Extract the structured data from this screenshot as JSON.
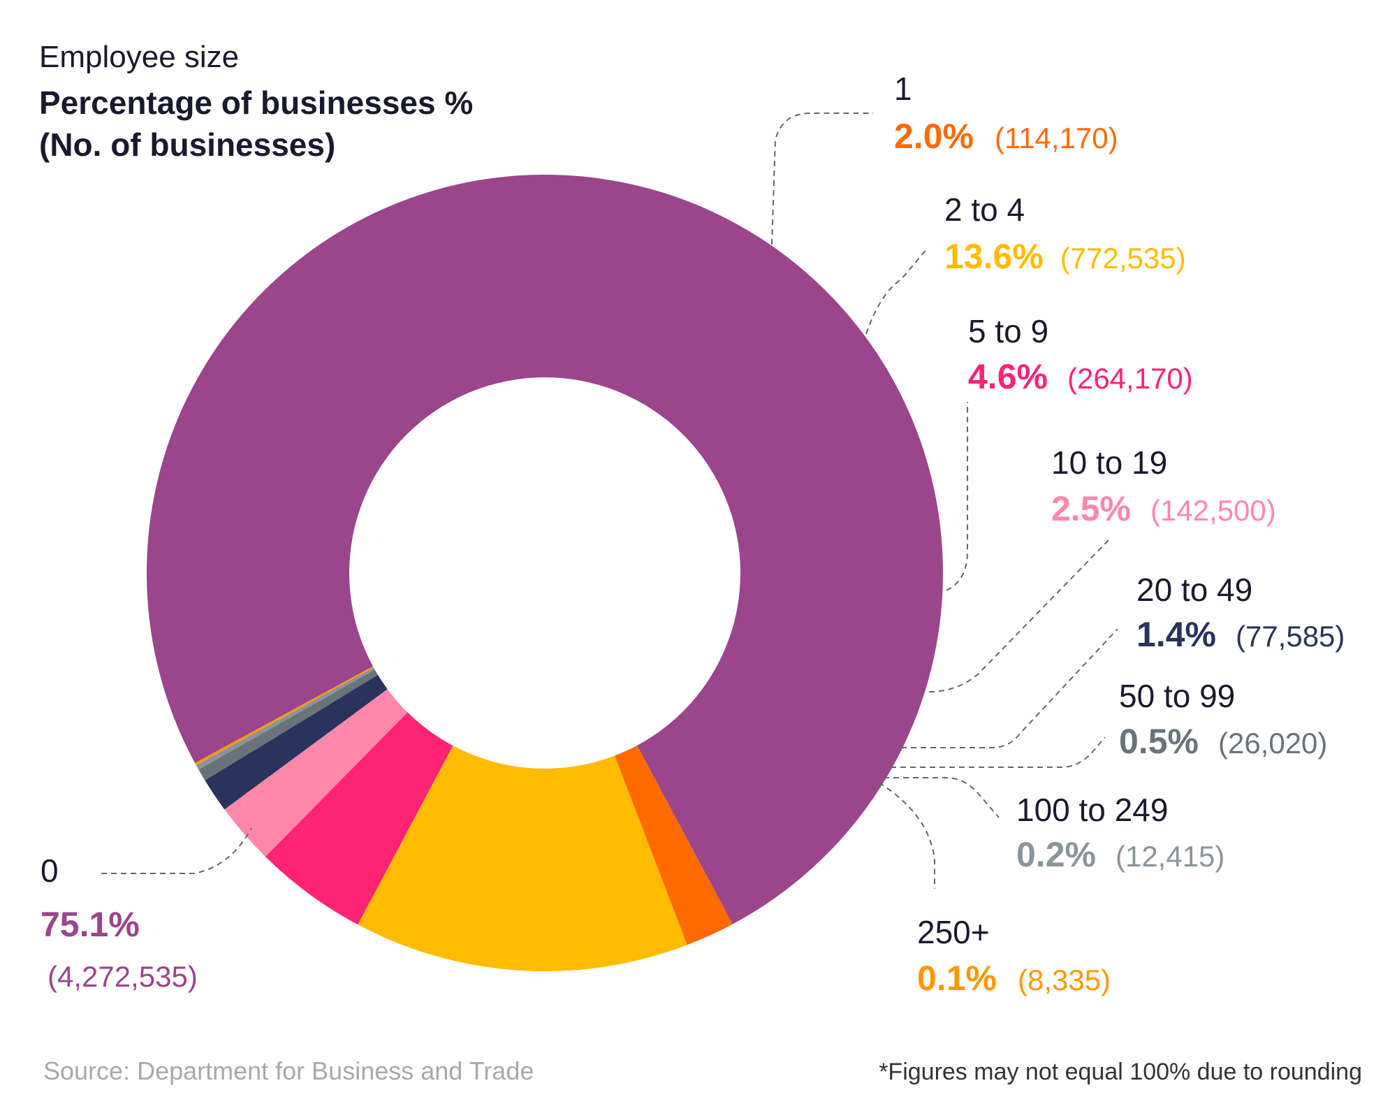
{
  "header": {
    "subtitle": "Employee size",
    "title_line1": "Percentage of businesses %",
    "title_line2": "(No. of businesses)"
  },
  "footer": {
    "source": "Source: Department for Business and Trade",
    "note": "*Figures may not equal 100% due to rounding"
  },
  "chart_data": {
    "type": "pie",
    "donut": true,
    "title": "Percentage of businesses % (No. of businesses)",
    "subtitle": "Employee size",
    "slices": [
      {
        "category": "0",
        "percent": 75.1,
        "percent_label": "75.1%",
        "count": 4272535,
        "count_label": "(4,272,535)",
        "color": "#9a458c"
      },
      {
        "category": "1",
        "percent": 2.0,
        "percent_label": "2.0%",
        "count": 114170,
        "count_label": "(114,170)",
        "color": "#ff6a00"
      },
      {
        "category": "2 to 4",
        "percent": 13.6,
        "percent_label": "13.6%",
        "count": 772535,
        "count_label": "(772,535)",
        "color": "#ffbb00"
      },
      {
        "category": "5 to 9",
        "percent": 4.6,
        "percent_label": "4.6%",
        "count": 264170,
        "count_label": "(264,170)",
        "color": "#ff2374"
      },
      {
        "category": "10 to 19",
        "percent": 2.5,
        "percent_label": "2.5%",
        "count": 142500,
        "count_label": "(142,500)",
        "color": "#ff87aa"
      },
      {
        "category": "20 to 49",
        "percent": 1.4,
        "percent_label": "1.4%",
        "count": 77585,
        "count_label": "(77,585)",
        "color": "#29335c"
      },
      {
        "category": "50 to 99",
        "percent": 0.5,
        "percent_label": "0.5%",
        "count": 26020,
        "count_label": "(26,020)",
        "color": "#69737a"
      },
      {
        "category": "100 to 249",
        "percent": 0.2,
        "percent_label": "0.2%",
        "count": 12415,
        "count_label": "(12,415)",
        "color": "#8a949b"
      },
      {
        "category": "250+",
        "percent": 0.1,
        "percent_label": "0.1%",
        "count": 8335,
        "count_label": "(8,335)",
        "color": "#ff9800"
      }
    ]
  }
}
